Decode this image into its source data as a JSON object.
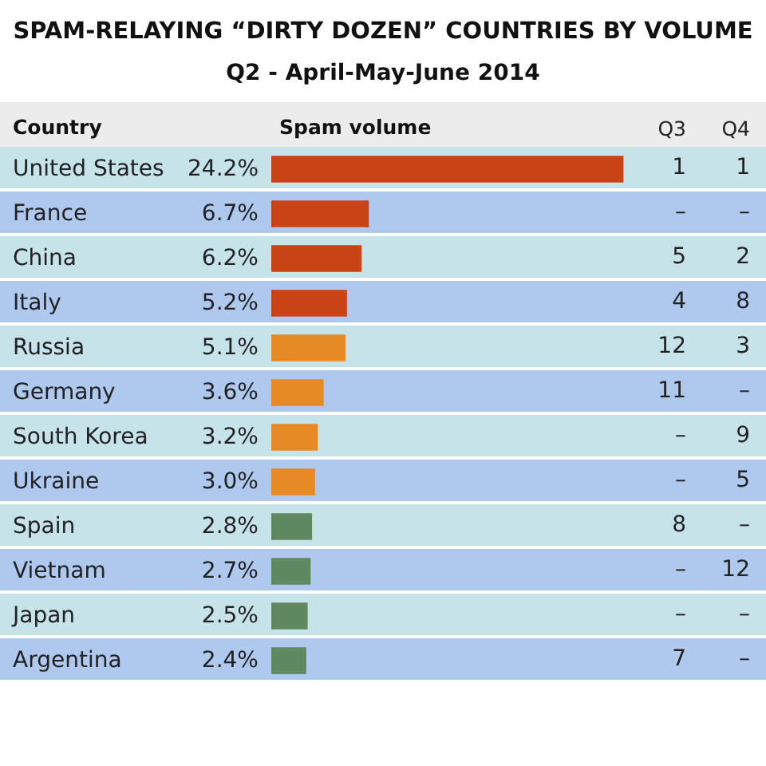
{
  "chart_data": [
    {
      "type": "bar",
      "orientation": "horizontal",
      "title": "SPAM-RELAYING “DIRTY DOZEN” COUNTRIES BY VOLUME",
      "subtitle": "Q2 - April-May-June 2014",
      "ylabel": "Country",
      "xlabel": "Spam volume",
      "tick_labels": "y",
      "categories": [
        "United States",
        "France",
        "China",
        "Italy",
        "Russia",
        "Germany",
        "South Korea",
        "Ukraine",
        "Spain",
        "Vietnam",
        "Japan",
        "Argentina"
      ],
      "values": [
        24.2,
        6.7,
        6.2,
        5.2,
        5.1,
        3.6,
        3.2,
        3.0,
        2.8,
        2.7,
        2.5,
        2.4
      ],
      "value_labels": [
        "24.2%",
        "6.7%",
        "6.2%",
        "5.2%",
        "5.1%",
        "3.6%",
        "3.2%",
        "3.0%",
        "2.8%",
        "2.7%",
        "2.5%",
        "2.4%"
      ],
      "colors": [
        "#c84416",
        "#c84416",
        "#c84416",
        "#c84416",
        "#e58a25",
        "#e58a25",
        "#e58a25",
        "#e58a25",
        "#5e8860",
        "#5e8860",
        "#5e8860",
        "#5e8860"
      ]
    },
    {
      "type": "other",
      "title": "Q3",
      "annotations": [
        "1",
        "–",
        "5",
        "4",
        "12",
        "11",
        "–",
        "–",
        "8",
        "–",
        "–",
        "7"
      ]
    },
    {
      "type": "other",
      "title": "Q4",
      "annotations": [
        "1",
        "–",
        "2",
        "8",
        "3",
        "–",
        "9",
        "5",
        "–",
        "12",
        "–",
        "–"
      ]
    }
  ]
}
